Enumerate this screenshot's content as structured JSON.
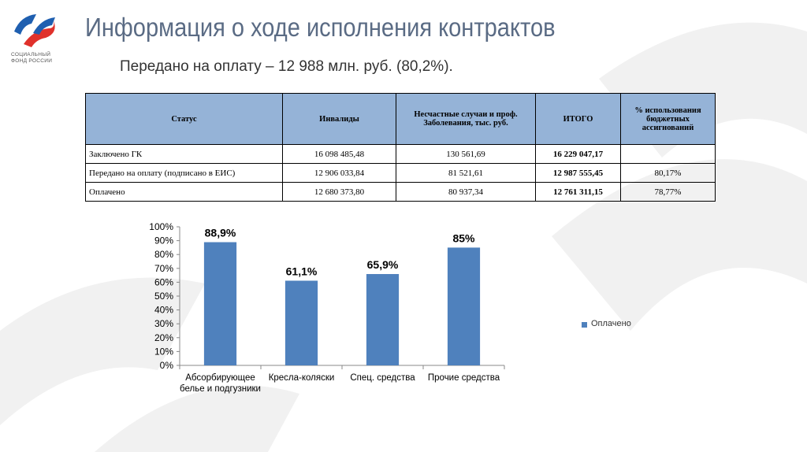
{
  "logo": {
    "line1": "СОЦИАЛЬНЫЙ",
    "line2": "ФОНД РОССИИ"
  },
  "title": "Информация о ходе исполнения контрактов",
  "subtitle": "Передано на оплату –  12 988 млн. руб. (80,2%).",
  "table": {
    "header": [
      "Статус",
      "Инвалиды",
      "Несчастные случаи и проф. Заболевания, тыс. руб.",
      "ИТОГО",
      "% использования бюджетных ассигнований"
    ],
    "rows": [
      [
        "Заключено ГК",
        "16 098 485,48",
        "130 561,69",
        "16 229 047,17",
        ""
      ],
      [
        "Передано на оплату (подписано в ЕИС)",
        "12 906 033,84",
        "81 521,61",
        "12 987 555,45",
        "80,17%"
      ],
      [
        "Оплачено",
        "12 680 373,80",
        "80 937,34",
        "12 761 311,15",
        "78,77%"
      ]
    ]
  },
  "chart_data": {
    "type": "bar",
    "categories": [
      "Абсорбирующее белье и подгузники",
      "Кресла-коляски",
      "Спец. средства",
      "Прочие средства"
    ],
    "series": [
      {
        "name": "Оплачено",
        "color": "#4f81bd",
        "values": [
          88.9,
          61.1,
          65.9,
          85
        ],
        "value_labels": [
          "88,9%",
          "61,1%",
          "65,9%",
          "85%"
        ]
      }
    ],
    "ylim": [
      0,
      100
    ],
    "yticks": [
      {
        "value": 0,
        "label": "0%"
      },
      {
        "value": 10,
        "label": "10%"
      },
      {
        "value": 20,
        "label": "20%"
      },
      {
        "value": 30,
        "label": "30%"
      },
      {
        "value": 40,
        "label": "40%"
      },
      {
        "value": 50,
        "label": "50%"
      },
      {
        "value": 60,
        "label": "60%"
      },
      {
        "value": 70,
        "label": "70%"
      },
      {
        "value": 80,
        "label": "80%"
      },
      {
        "value": 90,
        "label": "90%"
      },
      {
        "value": 100,
        "label": "100%"
      }
    ],
    "legend": "right"
  }
}
